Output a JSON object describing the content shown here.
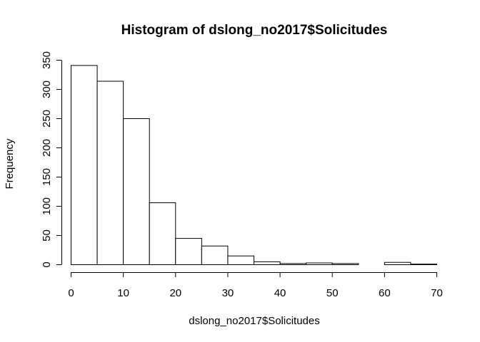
{
  "chart_data": {
    "type": "bar",
    "title": "Histogram of dslong_no2017$Solicitudes",
    "xlabel": "dslong_no2017$Solicitudes",
    "ylabel": "Frequency",
    "bins": [
      {
        "from": 0,
        "to": 5,
        "count": 341
      },
      {
        "from": 5,
        "to": 10,
        "count": 314
      },
      {
        "from": 10,
        "to": 15,
        "count": 250
      },
      {
        "from": 15,
        "to": 20,
        "count": 106
      },
      {
        "from": 20,
        "to": 25,
        "count": 45
      },
      {
        "from": 25,
        "to": 30,
        "count": 32
      },
      {
        "from": 30,
        "to": 35,
        "count": 15
      },
      {
        "from": 35,
        "to": 40,
        "count": 5
      },
      {
        "from": 40,
        "to": 45,
        "count": 2
      },
      {
        "from": 45,
        "to": 50,
        "count": 3
      },
      {
        "from": 50,
        "to": 55,
        "count": 2
      },
      {
        "from": 55,
        "to": 60,
        "count": 0
      },
      {
        "from": 60,
        "to": 65,
        "count": 4
      },
      {
        "from": 65,
        "to": 70,
        "count": 1
      }
    ],
    "xlim": [
      0,
      70
    ],
    "ylim": [
      0,
      350
    ],
    "xticks": [
      0,
      10,
      20,
      30,
      40,
      50,
      60,
      70
    ],
    "yticks": [
      0,
      50,
      100,
      150,
      200,
      250,
      300,
      350
    ],
    "grid": false,
    "colors": {
      "bar_fill": "#ffffff",
      "bar_stroke": "#000000"
    }
  }
}
